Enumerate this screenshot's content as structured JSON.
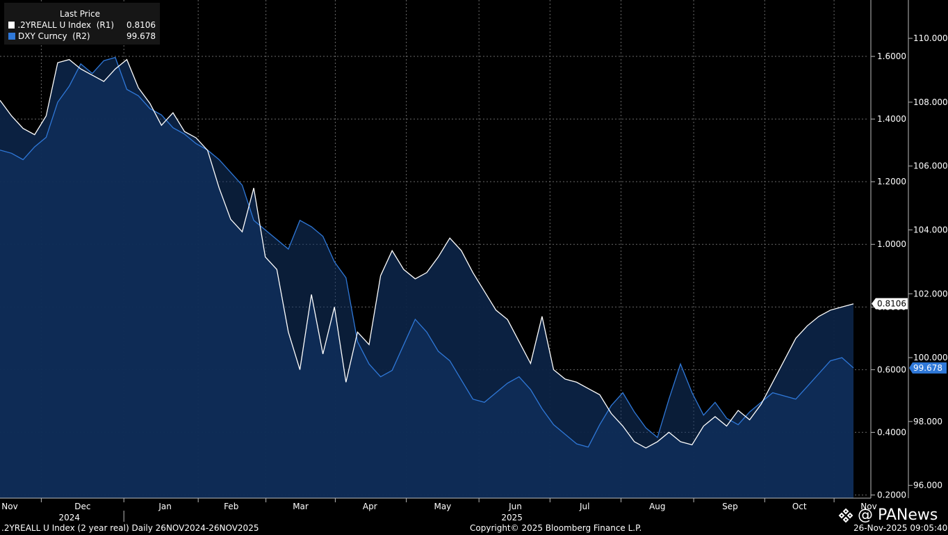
{
  "chart_data": {
    "type": "line",
    "title": "Last Price",
    "legend_position": "top-left",
    "grid": true,
    "x_ticks": [
      "Nov",
      "Dec",
      "Jan",
      "Feb",
      "Mar",
      "Apr",
      "May",
      "Jun",
      "Jul",
      "Aug",
      "Sep",
      "Oct",
      "Nov"
    ],
    "x_tick_weeks": [
      0,
      5.0,
      10.0,
      14.0,
      18.2,
      22.4,
      26.8,
      31.2,
      35.4,
      39.8,
      44.2,
      48.4,
      52.6
    ],
    "year_labels": [
      {
        "text": "2024",
        "week": 4.2
      },
      {
        "text": "2025",
        "week": 31.0
      }
    ],
    "x_range_weeks": [
      0,
      52.6
    ],
    "series": [
      {
        "name": ".2YREALL U Index  (R1)",
        "axis": "R1",
        "last": "0.8106",
        "color": "#ffffff",
        "ylim": [
          0.19,
          1.78
        ],
        "ticks": [
          "0.2000",
          "0.4000",
          "0.6000",
          "0.8000",
          "1.0000",
          "1.2000",
          "1.4000",
          "1.6000"
        ],
        "values": [
          1.46,
          1.41,
          1.37,
          1.35,
          1.41,
          1.58,
          1.59,
          1.56,
          1.54,
          1.52,
          1.56,
          1.59,
          1.5,
          1.45,
          1.38,
          1.42,
          1.36,
          1.34,
          1.3,
          1.18,
          1.08,
          1.04,
          1.18,
          0.96,
          0.92,
          0.72,
          0.6,
          0.84,
          0.65,
          0.8,
          0.56,
          0.72,
          0.68,
          0.9,
          0.98,
          0.92,
          0.89,
          0.91,
          0.96,
          1.02,
          0.98,
          0.91,
          0.85,
          0.79,
          0.76,
          0.69,
          0.62,
          0.77,
          0.6,
          0.57,
          0.56,
          0.54,
          0.52,
          0.46,
          0.42,
          0.37,
          0.35,
          0.37,
          0.4,
          0.37,
          0.36,
          0.42,
          0.45,
          0.42,
          0.47,
          0.44,
          0.49,
          0.56,
          0.63,
          0.7,
          0.74,
          0.77,
          0.79,
          0.8,
          0.81
        ]
      },
      {
        "name": "DXY Curncy  (R2)",
        "axis": "R2",
        "last": "99.678",
        "color": "#2f78d8",
        "ylim": [
          95.6,
          111.2
        ],
        "ticks": [
          "96.000",
          "98.000",
          "100.000",
          "102.000",
          "104.000",
          "106.000",
          "108.000",
          "110.000"
        ],
        "values": [
          106.5,
          106.4,
          106.2,
          106.6,
          106.9,
          108.0,
          108.5,
          109.2,
          108.9,
          109.3,
          109.4,
          108.4,
          108.2,
          107.8,
          107.6,
          107.2,
          107.0,
          106.7,
          106.5,
          106.2,
          105.8,
          105.4,
          104.3,
          104.0,
          103.7,
          103.4,
          104.3,
          104.1,
          103.8,
          103.0,
          102.5,
          100.5,
          99.8,
          99.4,
          99.6,
          100.4,
          101.2,
          100.8,
          100.2,
          99.9,
          99.3,
          98.7,
          98.6,
          98.9,
          99.2,
          99.4,
          99.0,
          98.4,
          97.9,
          97.6,
          97.3,
          97.2,
          97.9,
          98.5,
          98.9,
          98.3,
          97.8,
          97.5,
          98.7,
          99.8,
          98.9,
          98.2,
          98.6,
          98.1,
          97.9,
          98.3,
          98.6,
          98.9,
          98.8,
          98.7,
          99.1,
          99.5,
          99.9,
          100.0,
          99.678
        ]
      }
    ]
  },
  "footer": {
    "left": ".2YREALL U Index (2 year real) Daily 26NOV2024-26NOV2025",
    "center": "Copyright© 2025 Bloomberg Finance L.P.",
    "right": "26-Nov-2025 09:05:40"
  },
  "watermark": "@ PANews"
}
